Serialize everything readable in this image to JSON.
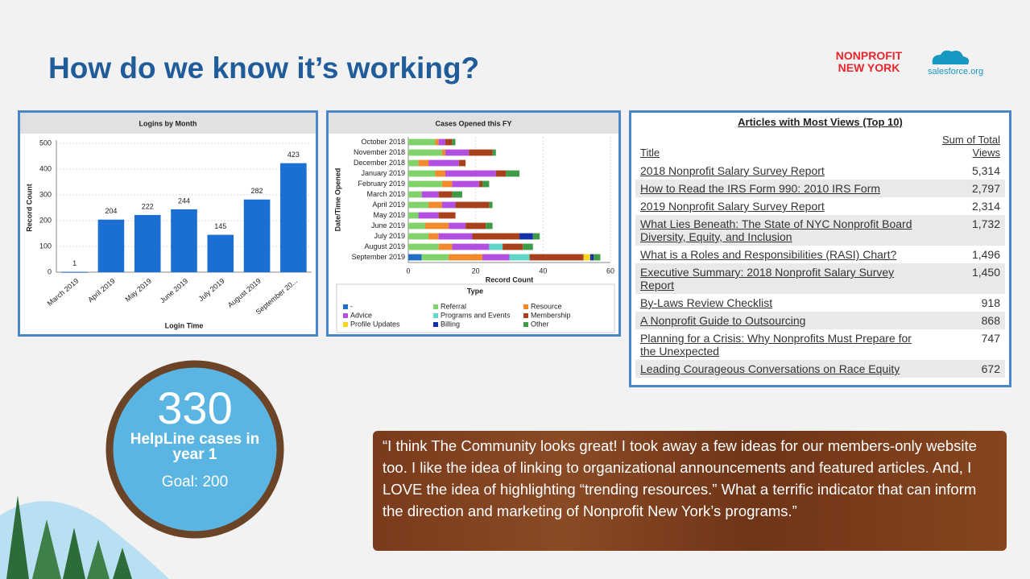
{
  "title": "How do we know it’s working?",
  "logos": {
    "nonprofit": [
      "NONPROFIT",
      "NEW YORK"
    ],
    "salesforce": "salesforce.org"
  },
  "chart_data": [
    {
      "type": "bar",
      "title": "Logins by Month",
      "categories": [
        "March 2019",
        "April 2019",
        "May 2019",
        "June 2019",
        "July 2019",
        "August 2019",
        "September 20..."
      ],
      "values": [
        1,
        204,
        222,
        244,
        145,
        282,
        423
      ],
      "color": "#1b6ed2",
      "ylim": [
        0,
        500
      ],
      "yticks": [
        0,
        100,
        200,
        300,
        400,
        500
      ],
      "y_label": "Record Count",
      "x_label": "Login Time",
      "grid": true
    },
    {
      "type": "stacked_barh",
      "title": "Cases Opened this FY",
      "categories": [
        "October 2018",
        "November 2018",
        "December 2018",
        "January 2019",
        "February 2019",
        "March 2019",
        "April 2019",
        "May 2019",
        "June 2019",
        "July 2019",
        "August 2019",
        "September 2019"
      ],
      "series": [
        {
          "name": "-",
          "color": "#1f6fc5",
          "values": [
            0,
            0,
            0,
            0,
            0,
            0,
            0,
            0,
            0,
            0,
            0,
            4
          ]
        },
        {
          "name": "Referral",
          "color": "#7fd36a",
          "values": [
            8,
            10,
            3,
            8,
            10,
            4,
            6,
            3,
            5,
            6,
            9,
            8
          ]
        },
        {
          "name": "Resource",
          "color": "#f08a2c",
          "values": [
            1,
            1,
            3,
            3,
            3,
            0,
            4,
            0,
            7,
            3,
            4,
            10
          ]
        },
        {
          "name": "Advice",
          "color": "#b34fe0",
          "values": [
            2,
            7,
            9,
            15,
            8,
            5,
            4,
            6,
            5,
            10,
            11,
            8
          ]
        },
        {
          "name": "Programs and Events",
          "color": "#5fd6c8",
          "values": [
            0,
            0,
            0,
            0,
            0,
            0,
            0,
            0,
            0,
            0,
            4,
            6
          ]
        },
        {
          "name": "Membership",
          "color": "#a8401c",
          "values": [
            2,
            7,
            2,
            3,
            1,
            4,
            10,
            5,
            6,
            14,
            6,
            16
          ]
        },
        {
          "name": "Profile Updates",
          "color": "#f2d51c",
          "values": [
            0,
            0,
            0,
            0,
            0,
            0,
            0,
            0,
            0,
            0,
            0,
            2
          ]
        },
        {
          "name": "Billing",
          "color": "#1430a8",
          "values": [
            0,
            0,
            0,
            0,
            0,
            0,
            0,
            0,
            0,
            4,
            0,
            1
          ]
        },
        {
          "name": "Other",
          "color": "#3f9a48",
          "values": [
            1,
            1,
            0,
            4,
            2,
            3,
            1,
            0,
            2,
            2,
            3,
            2
          ]
        }
      ],
      "xlim": [
        0,
        60
      ],
      "xticks": [
        0,
        20,
        40,
        60
      ],
      "x_label": "Record Count",
      "y_label": "Date/Time Opened",
      "legend_title": "Type",
      "grid": true
    }
  ],
  "table": {
    "title": "Articles with Most Views (Top 10)",
    "columns": [
      "Title",
      "Sum of Total Views"
    ],
    "rows": [
      [
        "2018 Nonprofit Salary Survey Report",
        "5,314"
      ],
      [
        "How to Read the IRS Form 990: 2010 IRS Form",
        "2,797"
      ],
      [
        "2019 Nonprofit Salary Survey Report",
        "2,314"
      ],
      [
        "What Lies Beneath: The State of NYC Nonprofit Board Diversity, Equity, and Inclusion",
        "1,732"
      ],
      [
        "What is a Roles and Responsibilities (RASI) Chart?",
        "1,496"
      ],
      [
        "Executive Summary: 2018 Nonprofit Salary Survey Report",
        "1,450"
      ],
      [
        "By-Laws Review Checklist",
        "918"
      ],
      [
        "A Nonprofit Guide to Outsourcing",
        "868"
      ],
      [
        "Planning for a Crisis: Why Nonprofits Must Prepare for the Unexpected",
        "747"
      ],
      [
        "Leading Courageous Conversations on Race Equity",
        "672"
      ]
    ]
  },
  "helpline": {
    "count": 330,
    "label": "HelpLine cases in year 1",
    "goal": "Goal: 200"
  },
  "quote": "“I think The Community looks great! I took away a few ideas for our members-only website too. I like the idea of linking to organizational announcements and featured articles. And, I LOVE the idea of highlighting “trending resources.” What a terrific indicator that can inform the direction and marketing of Nonprofit New York’s programs.”"
}
